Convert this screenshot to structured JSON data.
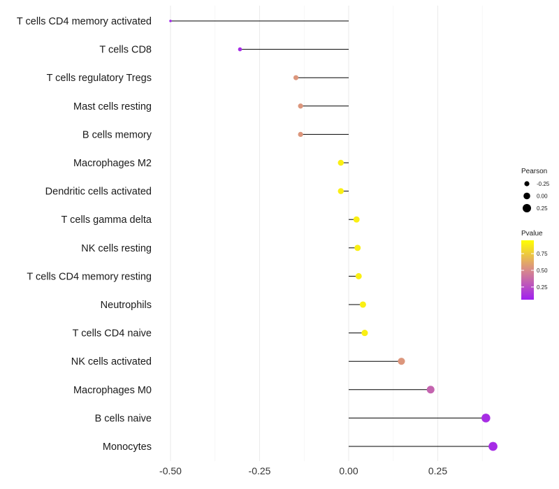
{
  "chart_data": {
    "type": "lollipop",
    "title": "",
    "xlabel": "",
    "ylabel": "",
    "xlim": [
      -0.5,
      0.41
    ],
    "x_ticks": [
      -0.5,
      -0.25,
      0.0,
      0.25
    ],
    "x_tick_labels": [
      "-0.50",
      "-0.25",
      "0.00",
      "0.25"
    ],
    "categories": [
      "T cells CD4 memory activated",
      "T cells CD8",
      "T cells regulatory  Tregs ",
      "Mast cells resting",
      "B cells memory",
      "Macrophages M2",
      "Dendritic cells activated",
      "T cells gamma delta",
      "NK cells resting",
      "T cells CD4 memory resting",
      "Neutrophils",
      "T cells CD4 naive",
      "NK cells activated",
      "Macrophages M0",
      "B cells naive",
      "Monocytes"
    ],
    "values": [
      -0.5,
      -0.305,
      -0.148,
      -0.135,
      -0.135,
      -0.022,
      -0.022,
      0.022,
      0.025,
      0.028,
      0.04,
      0.045,
      0.148,
      0.23,
      0.385,
      0.405
    ],
    "pvalues": [
      0.02,
      0.05,
      0.55,
      0.55,
      0.55,
      0.93,
      0.93,
      0.93,
      0.93,
      0.93,
      0.93,
      0.93,
      0.55,
      0.32,
      0.06,
      0.05
    ],
    "legend": {
      "size": {
        "title": "Pearson",
        "labels": [
          "-0.25",
          "0.00",
          "0.25"
        ],
        "values": [
          -0.25,
          0.0,
          0.25
        ]
      },
      "color": {
        "title": "Pvalue",
        "labels": [
          "0.75",
          "0.50",
          "0.25"
        ],
        "values": [
          0.75,
          0.5,
          0.25
        ],
        "low_color": "#a020f0",
        "mid_color": "#d88a8a",
        "high_color": "#ffff00",
        "range": [
          0.0,
          1.0
        ]
      },
      "placement": "right"
    },
    "colors": {
      "stem": "#000000",
      "grid": "#ebebeb",
      "background": "#ffffff"
    }
  }
}
